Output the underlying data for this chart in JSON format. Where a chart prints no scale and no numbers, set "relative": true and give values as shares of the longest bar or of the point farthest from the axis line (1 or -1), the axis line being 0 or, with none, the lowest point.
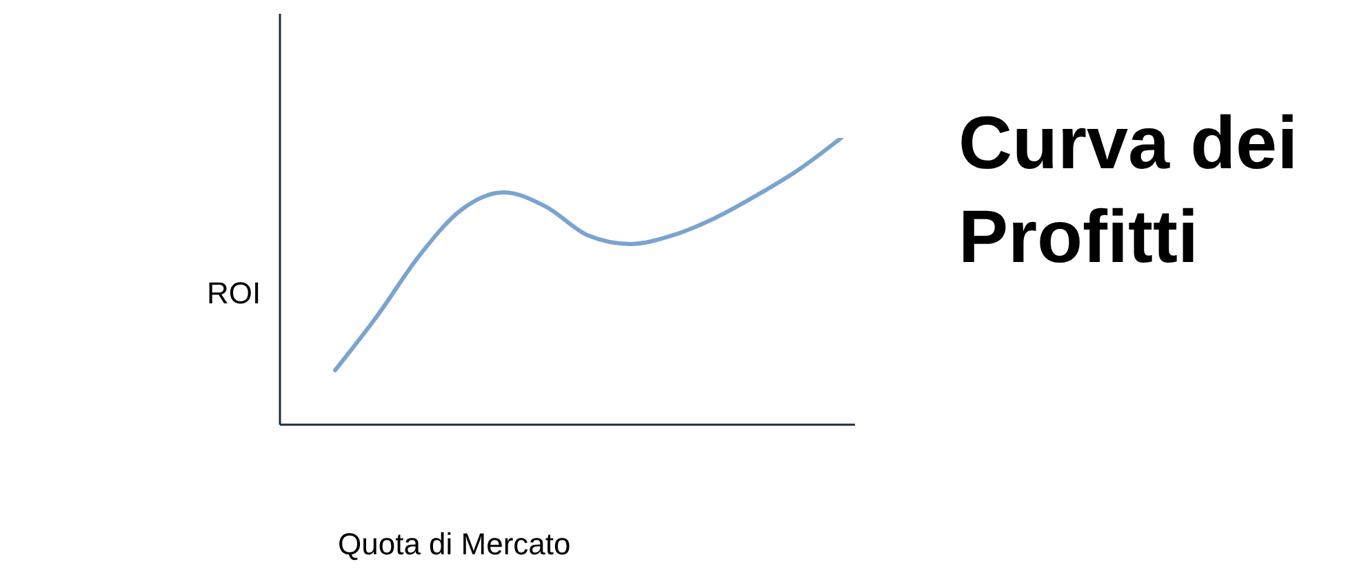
{
  "chart_data": {
    "type": "line",
    "title": "Curva dei Profitti",
    "xlabel": "Quota di Mercato",
    "ylabel": "ROI",
    "relative": true,
    "categories": [
      null,
      null,
      null,
      null,
      null,
      null,
      null,
      null,
      null,
      null,
      null,
      null,
      null
    ],
    "series": [
      {
        "color": "#7ba3cf",
        "values": [
          0.19,
          0.38,
          0.59,
          0.75,
          0.81,
          0.76,
          0.66,
          0.63,
          0.66,
          0.72,
          0.8,
          0.89,
          1.0
        ]
      }
    ]
  }
}
